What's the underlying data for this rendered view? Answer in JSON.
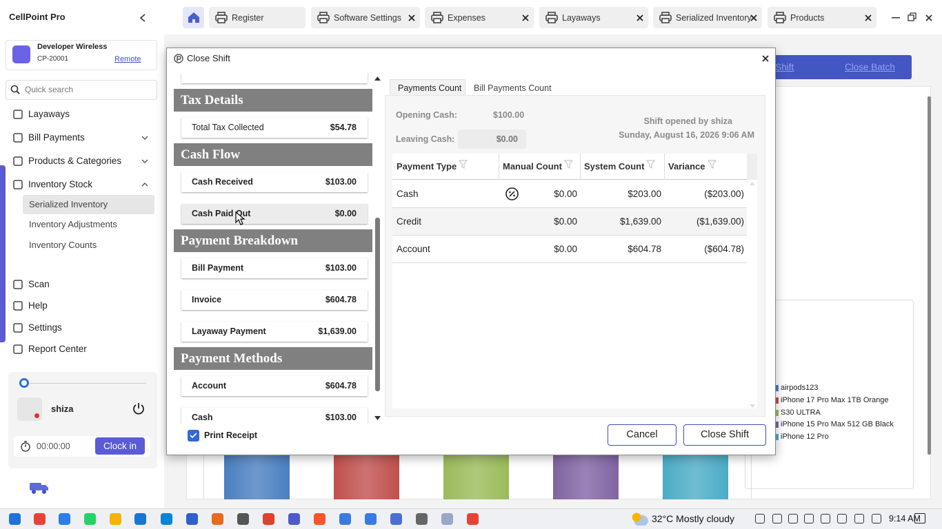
{
  "app": {
    "title": "CellPoint Pro"
  },
  "tabs": [
    "Register",
    "Software Settings",
    "Expenses",
    "Layaways",
    "Serialized Inventory",
    "Products"
  ],
  "sidebar": {
    "store": "Developer Wireless",
    "store_id": "CP-20001",
    "mode": "Remote",
    "search_placeholder": "Quick search",
    "nav": [
      "Layaways",
      "Bill Payments",
      "Products & Categories",
      "Inventory Stock",
      "Serialized Inventory",
      "Inventory Adjustments",
      "Inventory Counts",
      "Scan",
      "Help",
      "Settings",
      "Report Center"
    ],
    "user": "shiza",
    "timer": "00:00:00",
    "clock_in": "Clock in"
  },
  "background": {
    "buttons": [
      "Close Shift",
      "Close Batch"
    ],
    "legend": [
      "airpods123",
      "iPhone 17 Pro Max 1TB Orange",
      "S30 ULTRA",
      "iPhone 15 Pro Max 512 GB Black",
      "iPhone 12 Pro"
    ]
  },
  "dialog": {
    "title": "Close Shift",
    "sections": [
      {
        "title": "Tax Details",
        "items": [
          {
            "label": "Total Tax Collected",
            "value": "$54.78"
          }
        ]
      },
      {
        "title": "Cash Flow",
        "items": [
          {
            "label": "Cash Received",
            "value": "$103.00"
          },
          {
            "label": "Cash Paid Out",
            "value": "$0.00"
          }
        ]
      },
      {
        "title": "Payment Breakdown",
        "items": [
          {
            "label": "Bill Payment",
            "value": "$103.00"
          },
          {
            "label": "Invoice",
            "value": "$604.78"
          },
          {
            "label": "Layaway Payment",
            "value": "$1,639.00"
          }
        ]
      },
      {
        "title": "Payment Methods",
        "items": [
          {
            "label": "Account",
            "value": "$604.78"
          },
          {
            "label": "Cash",
            "value": "$103.00"
          }
        ]
      }
    ],
    "print_receipt": "Print Receipt",
    "tabs": [
      "Payments Count",
      "Bill Payments Count"
    ],
    "opening_cash_label": "Opening Cash:",
    "opening_cash": "$100.00",
    "leaving_cash_label": "Leaving Cash:",
    "leaving_cash": "$0.00",
    "shift_opened": "Shift opened by shiza",
    "shift_date": "Sunday, August 16, 2026 9:06 AM",
    "table": {
      "columns": [
        "Payment Type",
        "Manual Count",
        "System Count",
        "Variance"
      ],
      "rows": [
        [
          "Cash",
          "$0.00",
          "$203.00",
          "($203.00)"
        ],
        [
          "Credit",
          "$0.00",
          "$1,639.00",
          "($1,639.00)"
        ],
        [
          "Account",
          "$0.00",
          "$604.78",
          "($604.78)"
        ]
      ]
    },
    "buttons": [
      "Cancel",
      "Close Shift"
    ]
  },
  "taskbar": {
    "weather": "32°C Mostly cloudy",
    "time": "9:14 AM"
  }
}
